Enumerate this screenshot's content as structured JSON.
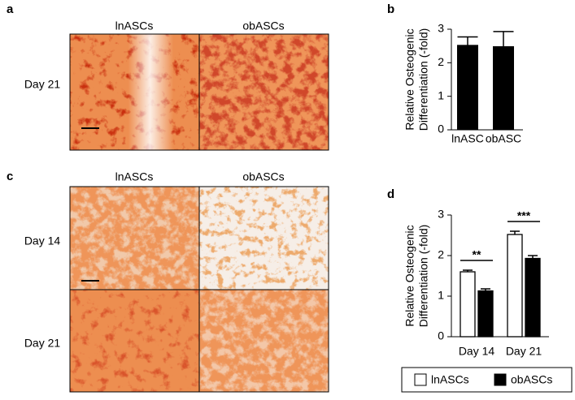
{
  "figure": {
    "panel_labels": [
      "a",
      "b",
      "c",
      "d"
    ],
    "panel_a": {
      "columns": [
        "lnASCs",
        "obASCs"
      ],
      "rows": [
        "Day 21"
      ]
    },
    "panel_c": {
      "columns": [
        "lnASCs",
        "obASCs"
      ],
      "rows": [
        "Day 14",
        "Day 21"
      ]
    }
  },
  "chart_data": [
    {
      "type": "bar",
      "ylabel": [
        "Relative Osteogenic",
        "Differentiation (-fold)"
      ],
      "categories": [
        "lnASC",
        "obASC"
      ],
      "values": [
        2.52,
        2.48
      ],
      "errors": [
        0.25,
        0.45
      ],
      "color": "#000000",
      "ylim": [
        0,
        3
      ],
      "yticks": [
        0,
        1,
        2,
        3
      ]
    },
    {
      "type": "grouped_bar",
      "ylabel": [
        "Relative Osteogenic",
        "Differentiation (-fold)"
      ],
      "categories": [
        "Day 14",
        "Day 21"
      ],
      "series": [
        {
          "name": "lnASCs",
          "color": "#ffffff",
          "values": [
            1.6,
            2.52
          ],
          "errors": [
            0.04,
            0.08
          ]
        },
        {
          "name": "obASCs",
          "color": "#000000",
          "values": [
            1.13,
            1.93
          ],
          "errors": [
            0.05,
            0.07
          ]
        }
      ],
      "annotations": [
        "**",
        "***"
      ],
      "ylim": [
        0,
        3
      ],
      "yticks": [
        0,
        1,
        2,
        3
      ],
      "legend": "bottom"
    }
  ]
}
